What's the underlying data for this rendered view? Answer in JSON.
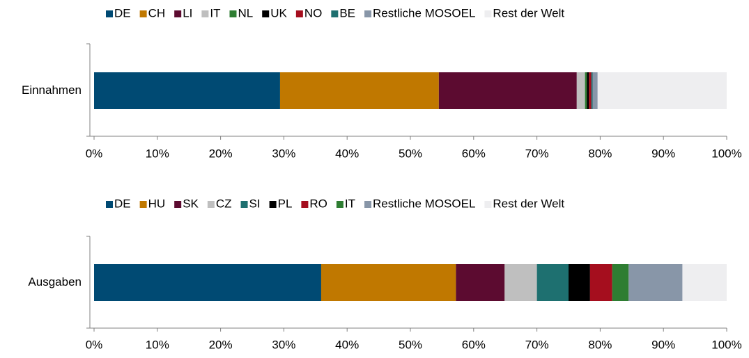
{
  "chart_data": [
    {
      "type": "stacked_bar",
      "orientation": "horizontal",
      "categories": [
        "Einnahmen"
      ],
      "series": [
        {
          "name": "DE",
          "color": "#004a73",
          "values": [
            29.4
          ]
        },
        {
          "name": "CH",
          "color": "#c07800",
          "values": [
            25.1
          ]
        },
        {
          "name": "LI",
          "color": "#5c0b30",
          "values": [
            21.8
          ]
        },
        {
          "name": "IT",
          "color": "#bfbfbf",
          "values": [
            1.3
          ]
        },
        {
          "name": "NL",
          "color": "#2e7d32",
          "values": [
            0.3
          ]
        },
        {
          "name": "UK",
          "color": "#000000",
          "values": [
            0.3
          ]
        },
        {
          "name": "NO",
          "color": "#a50e1e",
          "values": [
            0.4
          ]
        },
        {
          "name": "BE",
          "color": "#1e7070",
          "values": [
            0.2
          ]
        },
        {
          "name": "Restliche MOSOEL",
          "color": "#8896a8",
          "values": [
            0.8
          ]
        },
        {
          "name": "Rest der Welt",
          "color": "#eeeef0",
          "values": [
            20.4
          ]
        }
      ],
      "xlim": [
        0,
        100
      ],
      "xticks": [
        {
          "value": 0,
          "label": "0%"
        },
        {
          "value": 10,
          "label": "10%"
        },
        {
          "value": 20,
          "label": "20%"
        },
        {
          "value": 30,
          "label": "30%"
        },
        {
          "value": 40,
          "label": "40%"
        },
        {
          "value": 50,
          "label": "50%"
        },
        {
          "value": 60,
          "label": "60%"
        },
        {
          "value": 70,
          "label": "70%"
        },
        {
          "value": 80,
          "label": "80%"
        },
        {
          "value": 90,
          "label": "90%"
        },
        {
          "value": 100,
          "label": "100%"
        }
      ],
      "legend": "top"
    },
    {
      "type": "stacked_bar",
      "orientation": "horizontal",
      "categories": [
        "Ausgaben"
      ],
      "series": [
        {
          "name": "DE",
          "color": "#004a73",
          "values": [
            35.9
          ]
        },
        {
          "name": "HU",
          "color": "#c07800",
          "values": [
            21.3
          ]
        },
        {
          "name": "SK",
          "color": "#5c0b30",
          "values": [
            7.7
          ]
        },
        {
          "name": "CZ",
          "color": "#bfbfbf",
          "values": [
            5.1
          ]
        },
        {
          "name": "SI",
          "color": "#1e7070",
          "values": [
            5.0
          ]
        },
        {
          "name": "PL",
          "color": "#000000",
          "values": [
            3.4
          ]
        },
        {
          "name": "RO",
          "color": "#a50e1e",
          "values": [
            3.5
          ]
        },
        {
          "name": "IT",
          "color": "#2e7d32",
          "values": [
            2.6
          ]
        },
        {
          "name": "Restliche MOSOEL",
          "color": "#8896a8",
          "values": [
            8.5
          ]
        },
        {
          "name": "Rest der Welt",
          "color": "#eeeef0",
          "values": [
            7.0
          ]
        }
      ],
      "xlim": [
        0,
        100
      ],
      "xticks": [
        {
          "value": 0,
          "label": "0%"
        },
        {
          "value": 10,
          "label": "10%"
        },
        {
          "value": 20,
          "label": "20%"
        },
        {
          "value": 30,
          "label": "30%"
        },
        {
          "value": 40,
          "label": "40%"
        },
        {
          "value": 50,
          "label": "50%"
        },
        {
          "value": 60,
          "label": "60%"
        },
        {
          "value": 70,
          "label": "70%"
        },
        {
          "value": 80,
          "label": "80%"
        },
        {
          "value": 90,
          "label": "90%"
        },
        {
          "value": 100,
          "label": "100%"
        }
      ],
      "legend": "top"
    }
  ]
}
